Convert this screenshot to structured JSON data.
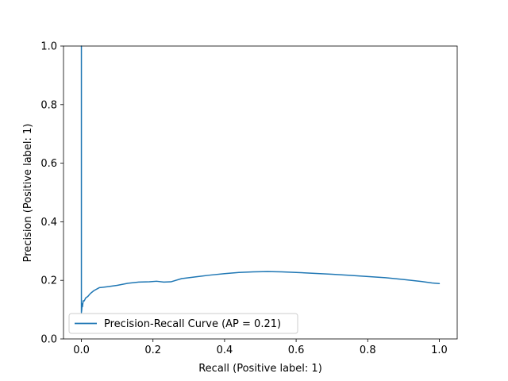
{
  "chart_data": {
    "type": "line",
    "title": "",
    "xlabel": "Recall (Positive label: 1)",
    "ylabel": "Precision (Positive label: 1)",
    "xlim": [
      -0.05,
      1.05
    ],
    "ylim": [
      0.0,
      1.0
    ],
    "xticks": [
      "0.0",
      "0.2",
      "0.4",
      "0.6",
      "0.8",
      "1.0"
    ],
    "yticks": [
      "0.0",
      "0.2",
      "0.4",
      "0.6",
      "0.8",
      "1.0"
    ],
    "grid": false,
    "legend_position": "lower-left",
    "series": [
      {
        "name": "Precision-Recall Curve (AP = 0.21)",
        "color": "#1f77b4",
        "x": [
          0.0,
          0.0,
          0.0,
          0.0,
          0.0,
          0.0,
          0.0,
          0.0,
          0.001,
          0.002,
          0.003,
          0.005,
          0.008,
          0.012,
          0.018,
          0.025,
          0.035,
          0.05,
          0.07,
          0.1,
          0.13,
          0.16,
          0.19,
          0.21,
          0.23,
          0.25,
          0.28,
          0.32,
          0.36,
          0.4,
          0.44,
          0.48,
          0.52,
          0.56,
          0.6,
          0.65,
          0.7,
          0.75,
          0.8,
          0.85,
          0.9,
          0.95,
          0.98,
          1.0
        ],
        "y": [
          1.0,
          0.6,
          0.3,
          0.22,
          0.25,
          0.17,
          0.12,
          0.09,
          0.1,
          0.12,
          0.11,
          0.13,
          0.13,
          0.14,
          0.145,
          0.155,
          0.165,
          0.175,
          0.178,
          0.183,
          0.19,
          0.194,
          0.195,
          0.197,
          0.194,
          0.195,
          0.206,
          0.212,
          0.218,
          0.223,
          0.227,
          0.229,
          0.23,
          0.229,
          0.227,
          0.224,
          0.221,
          0.217,
          0.213,
          0.209,
          0.203,
          0.196,
          0.191,
          0.189
        ]
      }
    ]
  }
}
